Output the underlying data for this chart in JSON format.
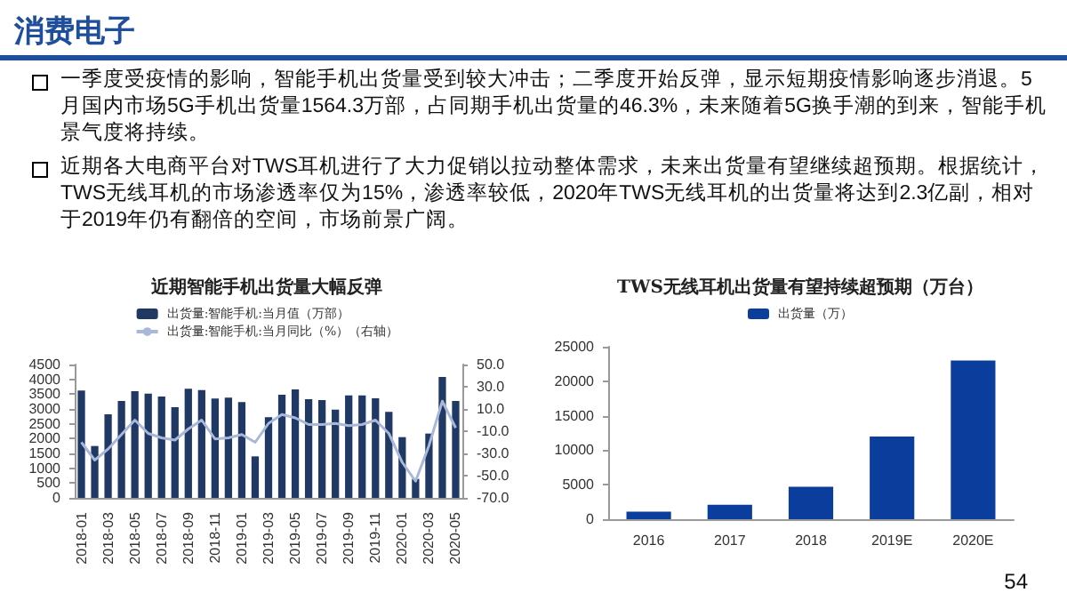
{
  "chart_data": [
    {
      "type": "other",
      "title": "消费电子",
      "annotations": [
        "一季度受疫情的影响，智能手机出货量受到较大冲击；二季度开始反弹，显示短期疫情影响逐步消退。5月国内市场5G手机出货量1564.3万部，占同期手机出货量的46.3%，未来随着5G换手潮的到来，智能手机景气度将持续。",
        "近期各大电商平台对TWS耳机进行了大力促销以拉动整体需求，未来出货量有望继续超预期。根据统计，TWS无线耳机的市场渗透率仅为15%，渗透率较低，2020年TWS无线耳机的出货量将达到2.3亿副，相对于2019年仍有翻倍的空间，市场前景广阔。",
        "54"
      ]
    },
    {
      "type": "bar",
      "title": "近期智能手机出货量大幅反弹",
      "categories": [
        "2018-01",
        null,
        "2018-03",
        null,
        "2018-05",
        null,
        "2018-07",
        null,
        "2018-09",
        null,
        "2018-11",
        null,
        "2019-01",
        null,
        "2019-03",
        null,
        "2019-05",
        null,
        "2019-07",
        null,
        "2019-09",
        null,
        "2019-11",
        null,
        "2020-01",
        null,
        "2020-03",
        null,
        "2020-05"
      ],
      "series": [
        {
          "name": "出货量:智能手机:当月值（万部）",
          "color": "#1f3864",
          "values": [
            3620,
            1750,
            2820,
            3270,
            3600,
            3520,
            3420,
            3060,
            3680,
            3640,
            3350,
            3380,
            3230,
            1400,
            2720,
            3480,
            3660,
            3330,
            3300,
            2980,
            3460,
            3460,
            3360,
            2900,
            2050,
            640,
            2170,
            4080,
            3270
          ]
        },
        {
          "name": "出货量:智能手机:当月同比（%）（右轴）",
          "type": "line",
          "axis": "y2",
          "color": "#a9b8d8",
          "values": [
            -20,
            -36,
            -26,
            -13,
            0,
            -12,
            -16,
            -18,
            -8,
            0,
            -17,
            -16,
            -13,
            -20,
            -3,
            5,
            2,
            -4,
            -4,
            -3,
            -5,
            -4,
            0,
            -12,
            -38,
            -55,
            -23,
            17,
            -7
          ]
        }
      ],
      "ylim": [
        0,
        4500
      ],
      "yticks": [
        0,
        500,
        1000,
        1500,
        2000,
        2500,
        3000,
        3500,
        4000,
        4500
      ],
      "y2lim": [
        -70,
        50
      ],
      "y2ticks": [
        {
          "value": -70,
          "label": "-70.0"
        },
        {
          "value": -50,
          "label": "-50.0"
        },
        {
          "value": -30,
          "label": "-30.0"
        },
        {
          "value": -10,
          "label": "-10.0"
        },
        {
          "value": 10,
          "label": "10.0"
        },
        {
          "value": 30,
          "label": "30.0"
        },
        {
          "value": 50,
          "label": "50.0"
        }
      ],
      "legend": "top",
      "grid": false,
      "marker": "none"
    },
    {
      "type": "bar",
      "title": "TWS无线耳机出货量有望持续超预期（万台）",
      "categories": [
        "2016",
        "2017",
        "2018",
        "2019E",
        "2020E"
      ],
      "series": [
        {
          "name": "出货量（万）",
          "color": "#0b3d9c",
          "values": [
            1100,
            2100,
            4700,
            12000,
            23000
          ]
        }
      ],
      "ylim": [
        0,
        25000
      ],
      "yticks": [
        0,
        5000,
        10000,
        15000,
        20000,
        25000
      ],
      "legend": "top",
      "grid": false
    }
  ]
}
